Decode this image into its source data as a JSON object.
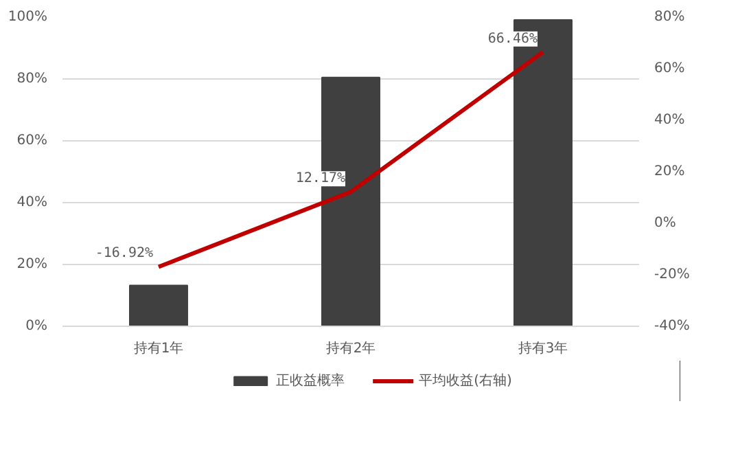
{
  "chart_data": {
    "type": "bar",
    "categories": [
      "持有1年",
      "持有2年",
      "持有3年"
    ],
    "series": [
      {
        "name": "正收益概率",
        "color": "#404040",
        "values": [
          13.2,
          80.5,
          99.1
        ]
      },
      {
        "name": "平均收益(右轴)",
        "type": "line",
        "axis": "y2",
        "color": "#c00000",
        "values": [
          -16.92,
          12.17,
          66.46
        ],
        "value_labels": [
          "-16.92%",
          "12.17%",
          "66.46%"
        ]
      }
    ],
    "ylim": [
      0,
      100
    ],
    "yticks": [
      {
        "value": 0,
        "label": "0%"
      },
      {
        "value": 20,
        "label": "20%"
      },
      {
        "value": 40,
        "label": "40%"
      },
      {
        "value": 60,
        "label": "60%"
      },
      {
        "value": 80,
        "label": "80%"
      },
      {
        "value": 100,
        "label": "100%"
      }
    ],
    "y2lim": [
      -40,
      80
    ],
    "y2ticks": [
      {
        "value": -40,
        "label": "-40%"
      },
      {
        "value": -20,
        "label": "-20%"
      },
      {
        "value": 0,
        "label": "0%"
      },
      {
        "value": 20,
        "label": "20%"
      },
      {
        "value": 40,
        "label": "40%"
      },
      {
        "value": 60,
        "label": "60%"
      },
      {
        "value": 80,
        "label": "80%"
      }
    ],
    "grid": "y",
    "legend": "bottom",
    "marker": "none",
    "line_style": "solid"
  }
}
